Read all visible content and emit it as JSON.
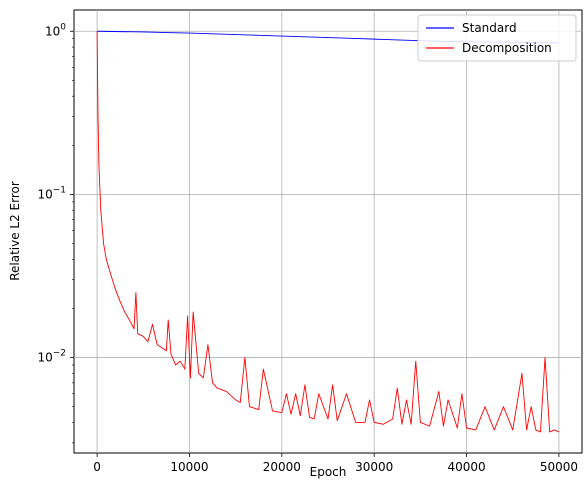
{
  "chart_data": {
    "type": "line",
    "title": "",
    "xlabel": "Epoch",
    "ylabel": "Relative L2 Error",
    "xlim": [
      -2500,
      52500
    ],
    "ylim": [
      0.0026,
      1.35
    ],
    "yscale": "log",
    "grid": true,
    "legend_position": "top-right",
    "xticks": [
      0,
      10000,
      20000,
      30000,
      40000,
      50000
    ],
    "xtick_labels": [
      "0",
      "10000",
      "20000",
      "30000",
      "40000",
      "50000"
    ],
    "yticks": [
      1,
      0.1,
      0.01
    ],
    "ytick_labels": [
      "10^0",
      "10^-1",
      "10^-2"
    ],
    "series": [
      {
        "name": "Standard",
        "color": "#0000ff",
        "x": [
          0,
          2500,
          5000,
          7500,
          10000,
          12500,
          15000,
          17500,
          20000,
          22500,
          25000,
          27500,
          30000,
          32500,
          35000,
          37500,
          40000,
          42500,
          45000,
          47500,
          50000
        ],
        "y": [
          1.0,
          0.995,
          0.99,
          0.982,
          0.975,
          0.965,
          0.955,
          0.945,
          0.935,
          0.925,
          0.915,
          0.905,
          0.895,
          0.885,
          0.875,
          0.868,
          0.862,
          0.858,
          0.855,
          0.852,
          0.85
        ]
      },
      {
        "name": "Decomposition",
        "color": "#ff0000",
        "x": [
          0,
          100,
          200,
          400,
          700,
          1000,
          1500,
          2000,
          2500,
          3000,
          3500,
          4000,
          4200,
          4400,
          5000,
          5500,
          6000,
          6500,
          7000,
          7500,
          7700,
          8000,
          8500,
          9000,
          9500,
          9800,
          10100,
          10400,
          11000,
          11500,
          12000,
          12500,
          13000,
          14000,
          15000,
          15500,
          16000,
          16500,
          17000,
          17500,
          18000,
          19000,
          20000,
          20500,
          21000,
          21500,
          22000,
          22500,
          23000,
          23500,
          24000,
          25000,
          25500,
          26000,
          27000,
          28000,
          29000,
          29500,
          30000,
          31000,
          32000,
          32500,
          33000,
          33500,
          34000,
          34500,
          35000,
          36000,
          37000,
          37500,
          38000,
          39000,
          39500,
          40000,
          41000,
          42000,
          43000,
          44000,
          45000,
          46000,
          46500,
          47000,
          47500,
          48000,
          48500,
          49000,
          49500,
          50000
        ],
        "y": [
          1.0,
          0.3,
          0.15,
          0.08,
          0.05,
          0.04,
          0.032,
          0.026,
          0.022,
          0.019,
          0.017,
          0.015,
          0.025,
          0.014,
          0.0135,
          0.0125,
          0.016,
          0.012,
          0.0115,
          0.011,
          0.017,
          0.0105,
          0.009,
          0.0095,
          0.0085,
          0.018,
          0.0075,
          0.019,
          0.008,
          0.0075,
          0.012,
          0.007,
          0.0065,
          0.0062,
          0.0055,
          0.0053,
          0.01,
          0.005,
          0.0049,
          0.0048,
          0.0085,
          0.0047,
          0.0046,
          0.006,
          0.0045,
          0.006,
          0.0044,
          0.0068,
          0.0043,
          0.0042,
          0.006,
          0.0042,
          0.0068,
          0.0041,
          0.006,
          0.004,
          0.004,
          0.0055,
          0.004,
          0.0039,
          0.0042,
          0.0065,
          0.0039,
          0.0055,
          0.0039,
          0.0095,
          0.004,
          0.0038,
          0.0062,
          0.0038,
          0.0055,
          0.0037,
          0.006,
          0.0037,
          0.0036,
          0.005,
          0.0036,
          0.005,
          0.0036,
          0.008,
          0.0036,
          0.005,
          0.0036,
          0.0035,
          0.01,
          0.0035,
          0.0036,
          0.0035
        ]
      }
    ]
  }
}
